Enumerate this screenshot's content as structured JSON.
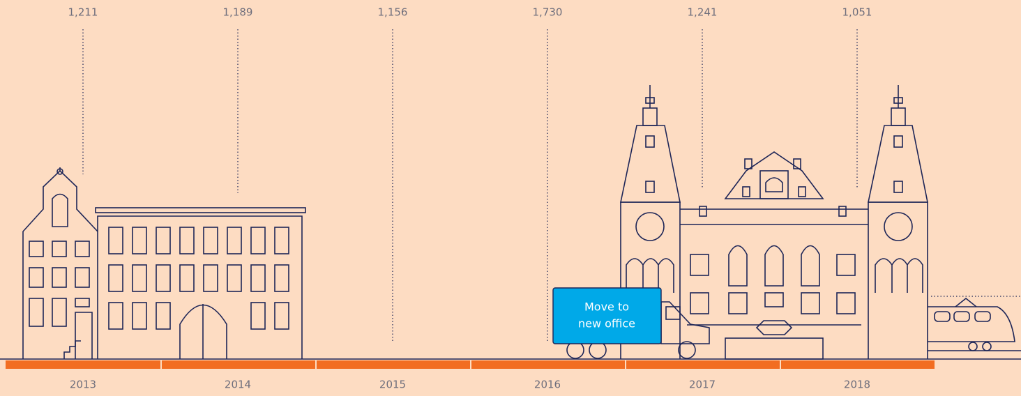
{
  "timeline": {
    "items": [
      {
        "year": "2013",
        "count": "1,211"
      },
      {
        "year": "2014",
        "count": "1,189"
      },
      {
        "year": "2015",
        "count": "1,156"
      },
      {
        "year": "2016",
        "count": "1,730"
      },
      {
        "year": "2017",
        "count": "1,241"
      },
      {
        "year": "2018",
        "count": "1,051"
      }
    ]
  },
  "truck": {
    "label_lines": [
      "Move to",
      "new office"
    ]
  }
}
